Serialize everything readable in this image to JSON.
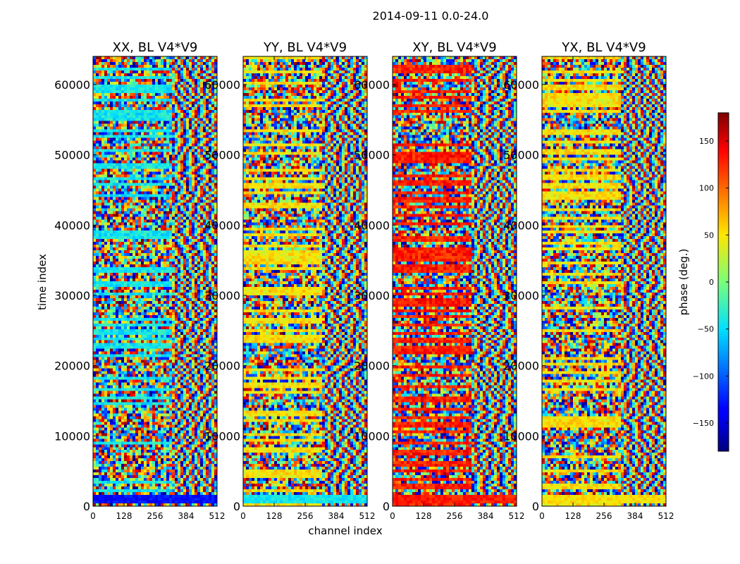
{
  "chart_data": {
    "type": "heatmap",
    "title": "2014-09-11 0.0-24.0",
    "xlabel": "channel index",
    "ylabel": "time index",
    "xlim": [
      0,
      512
    ],
    "ylim": [
      0,
      64000
    ],
    "x_ticks": [
      "0",
      "128",
      "256",
      "384",
      "512"
    ],
    "y_ticks": [
      "0",
      "10000",
      "20000",
      "30000",
      "40000",
      "50000",
      "60000"
    ],
    "panels": [
      {
        "title": "XX, BL V4*V9",
        "baseline": "cyan",
        "bottom_band": "blue"
      },
      {
        "title": "YY, BL V4*V9",
        "baseline": "yellow",
        "bottom_band": "cyan"
      },
      {
        "title": "XY, BL V4*V9",
        "baseline": "red",
        "bottom_band": "red"
      },
      {
        "title": "YX, BL V4*V9",
        "baseline": "yellow",
        "bottom_band": "yellow"
      }
    ],
    "colorbar": {
      "label": "phase (deg.)",
      "colormap": "jet",
      "range": [
        -180,
        180
      ],
      "ticks": [
        "150",
        "100",
        "50",
        "0",
        "−50",
        "−100",
        "−150"
      ],
      "tick_values": [
        150,
        100,
        50,
        0,
        -50,
        -100,
        -150
      ]
    }
  }
}
